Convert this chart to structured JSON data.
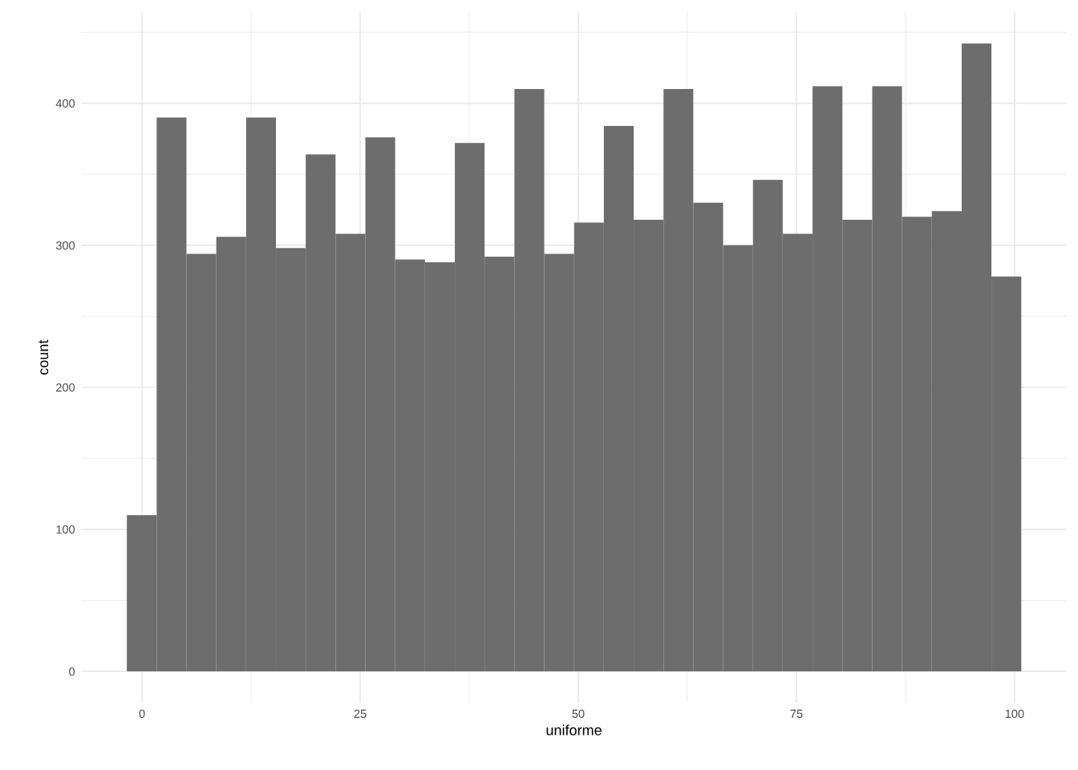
{
  "chart_data": {
    "type": "histogram",
    "xlabel": "uniforme",
    "ylabel": "count",
    "color": "#6d6d6d",
    "bins": [
      -1.74,
      1.68,
      5.09,
      8.51,
      11.93,
      15.35,
      18.76,
      22.18,
      25.6,
      29.01,
      32.43,
      35.85,
      39.26,
      42.68,
      46.1,
      49.52,
      52.93,
      56.35,
      59.77,
      63.18,
      66.6,
      70.02,
      73.43,
      76.85,
      80.27,
      83.69,
      87.1,
      90.52,
      93.94,
      97.35,
      100.77
    ],
    "values": [
      110,
      390,
      294,
      306,
      390,
      298,
      364,
      308,
      376,
      290,
      288,
      372,
      292,
      410,
      294,
      316,
      384,
      318,
      410,
      330,
      300,
      346,
      308,
      412,
      318,
      412,
      320,
      324,
      442,
      278
    ],
    "xlim": [
      -6.9,
      105.9
    ],
    "ylim": [
      -22,
      464
    ],
    "xticks": [
      0,
      25,
      50,
      75,
      100
    ],
    "yticks": [
      0,
      100,
      200,
      300,
      400
    ],
    "grid": true
  }
}
